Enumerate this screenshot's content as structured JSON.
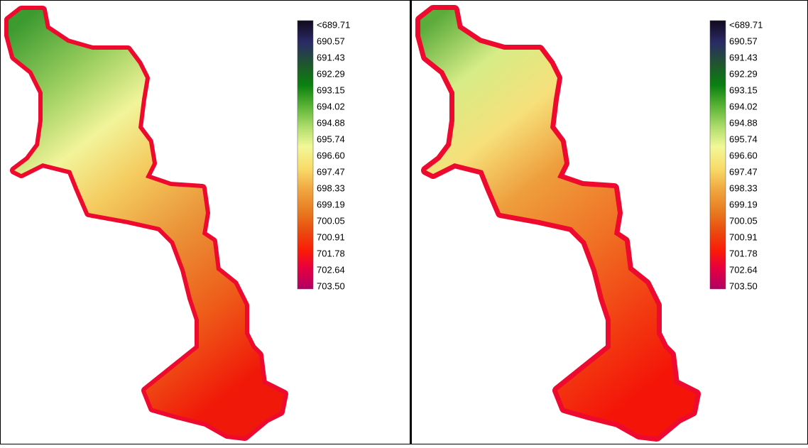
{
  "panels": [
    {
      "legend": {
        "labels": [
          "<689.71",
          "690.57",
          "691.43",
          "692.29",
          "693.15",
          "694.02",
          "694.88",
          "695.74",
          "696.60",
          "697.47",
          "698.33",
          "699.19",
          "700.05",
          "700.91",
          "701.78",
          "702.64",
          "703.50"
        ]
      }
    },
    {
      "legend": {
        "labels": [
          "<689.71",
          "690.57",
          "691.43",
          "692.29",
          "693.15",
          "694.02",
          "694.88",
          "695.74",
          "696.60",
          "697.47",
          "698.33",
          "699.19",
          "700.05",
          "700.91",
          "701.78",
          "702.64",
          "703.50"
        ]
      }
    }
  ]
}
